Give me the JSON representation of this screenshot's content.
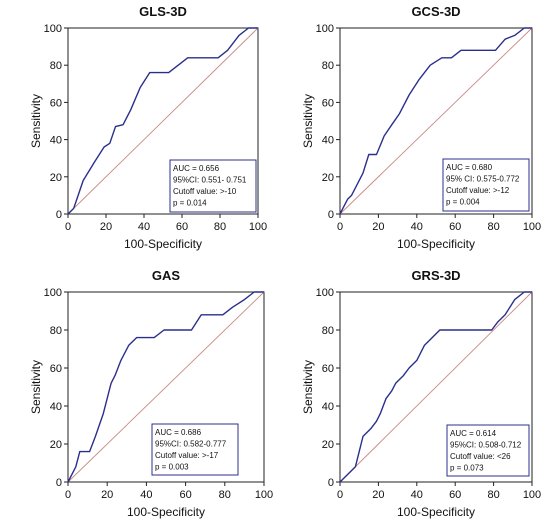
{
  "chart_data": [
    {
      "type": "line",
      "title": "GLS-3D",
      "xlabel": "100-Specificity",
      "ylabel": "Sensitivity",
      "xlim": [
        0,
        100
      ],
      "ylim": [
        0,
        100
      ],
      "xticks": [
        "0",
        "20",
        "40",
        "60",
        "80",
        "100"
      ],
      "yticks": [
        "0",
        "20",
        "40",
        "60",
        "80",
        "100"
      ],
      "curve": {
        "x": [
          0,
          3,
          8,
          14,
          19,
          22,
          25,
          29,
          33,
          38,
          43,
          48,
          53,
          58,
          63,
          68,
          73,
          79,
          84,
          90,
          95,
          100
        ],
        "y": [
          0,
          3,
          18,
          28,
          36,
          38,
          47,
          48,
          56,
          68,
          76,
          76,
          76,
          80,
          84,
          84,
          84,
          84,
          88,
          96,
          100,
          100
        ]
      },
      "diagonal": true,
      "stats": [
        "AUC = 0.656",
        "95%CI: 0.551- 0.751",
        "Cutoff value: >-10",
        "p = 0.014"
      ]
    },
    {
      "type": "line",
      "title": "GCS-3D",
      "xlabel": "100-Specificity",
      "ylabel": "Sensitivity",
      "xlim": [
        0,
        100
      ],
      "ylim": [
        0,
        100
      ],
      "xticks": [
        "0",
        "20",
        "40",
        "60",
        "80",
        "100"
      ],
      "yticks": [
        "0",
        "20",
        "40",
        "60",
        "80",
        "100"
      ],
      "curve": {
        "x": [
          0,
          2,
          4,
          6,
          9,
          12,
          15,
          19,
          23,
          27,
          31,
          36,
          41,
          47,
          53,
          58,
          63,
          69,
          75,
          81,
          86,
          91,
          96,
          100
        ],
        "y": [
          0,
          4,
          8,
          10,
          16,
          22,
          32,
          32,
          42,
          48,
          54,
          64,
          72,
          80,
          84,
          84,
          88,
          88,
          88,
          88,
          94,
          96,
          100,
          100
        ]
      },
      "diagonal": true,
      "stats": [
        "AUC = 0.680",
        "95% CI: 0.575-0.772",
        "Cutoff value: >-12",
        "p = 0.004"
      ]
    },
    {
      "type": "line",
      "title": "GAS",
      "xlabel": "100-Specificity",
      "ylabel": "Sensitivity",
      "xlim": [
        0,
        100
      ],
      "ylim": [
        0,
        100
      ],
      "xticks": [
        "0",
        "20",
        "40",
        "60",
        "80",
        "100"
      ],
      "yticks": [
        "0",
        "20",
        "40",
        "60",
        "80",
        "100"
      ],
      "curve": {
        "x": [
          0,
          4,
          6,
          11,
          14,
          18,
          22,
          24,
          27,
          31,
          35,
          40,
          44,
          49,
          53,
          58,
          63,
          68,
          74,
          79,
          84,
          90,
          95,
          100
        ],
        "y": [
          0,
          8,
          16,
          16,
          24,
          36,
          52,
          56,
          64,
          72,
          76,
          76,
          76,
          80,
          80,
          80,
          80,
          88,
          88,
          88,
          92,
          96,
          100,
          100
        ]
      },
      "diagonal": true,
      "stats": [
        "AUC = 0.686",
        "95%CI: 0.582-0.777",
        "Cutoff value: >-17",
        "p = 0.003"
      ]
    },
    {
      "type": "line",
      "title": "GRS-3D",
      "xlabel": "100-Specificity",
      "ylabel": "Sensitivity",
      "xlim": [
        0,
        100
      ],
      "ylim": [
        0,
        100
      ],
      "xticks": [
        "0",
        "20",
        "40",
        "60",
        "80",
        "100"
      ],
      "yticks": [
        "0",
        "20",
        "40",
        "60",
        "80",
        "100"
      ],
      "curve": {
        "x": [
          0,
          4,
          8,
          10,
          11,
          12,
          16,
          19,
          21,
          24,
          27,
          29,
          33,
          36,
          40,
          44,
          48,
          52,
          57,
          62,
          67,
          71,
          75,
          79,
          82,
          86,
          91,
          96,
          100
        ],
        "y": [
          0,
          4,
          8,
          16,
          20,
          24,
          28,
          32,
          36,
          44,
          48,
          52,
          56,
          60,
          64,
          72,
          76,
          80,
          80,
          80,
          80,
          80,
          80,
          80,
          84,
          88,
          96,
          100,
          100
        ]
      },
      "diagonal": true,
      "stats": [
        "AUC = 0.614",
        "95%CI: 0.508-0.712",
        "Cutoff value: <26",
        "p = 0.073"
      ]
    }
  ]
}
